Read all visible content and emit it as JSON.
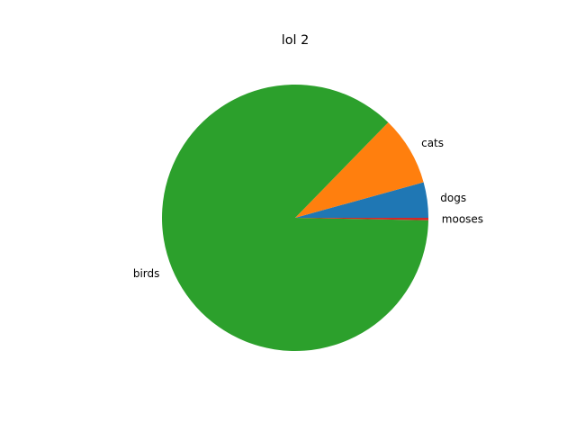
{
  "chart_data": {
    "type": "pie",
    "title": "lol 2",
    "categories": [
      "dogs",
      "cats",
      "birds",
      "mooses"
    ],
    "values": [
      4.3,
      8.4,
      87,
      0.3
    ],
    "colors": [
      "#1f77b4",
      "#ff7f0e",
      "#2ca02c",
      "#d62728"
    ],
    "start_angle_deg": 0,
    "direction": "counterclockwise",
    "legend": "none"
  }
}
